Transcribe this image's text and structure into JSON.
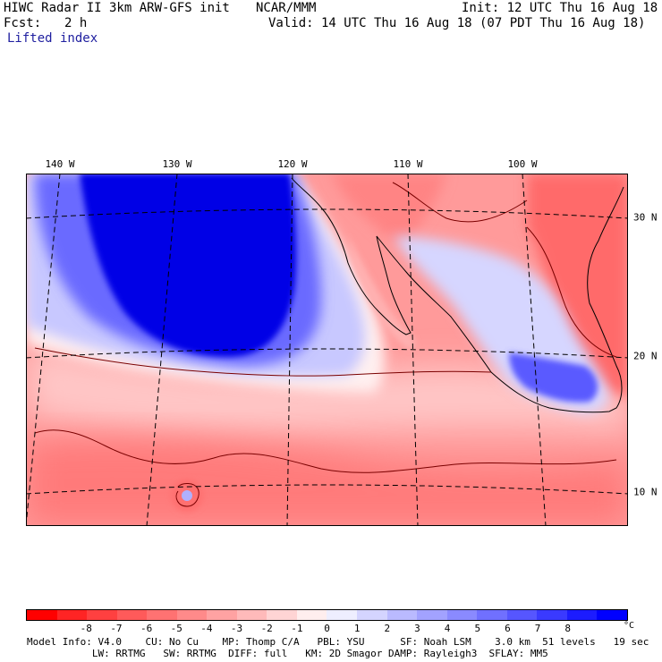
{
  "header": {
    "model": "HIWC Radar II 3km ARW-GFS init",
    "org": "NCAR/MMM",
    "init": "Init: 12 UTC Thu 16 Aug 18",
    "fcst_label": "Fcst:",
    "fcst_value": "2 h",
    "valid": "Valid: 14 UTC Thu 16 Aug 18 (07 PDT Thu 16 Aug 18)",
    "field": "Lifted index"
  },
  "map": {
    "longitude_labels": [
      "140 W",
      "130 W",
      "120 W",
      "110 W",
      "100 W"
    ],
    "latitude_labels": [
      "30 N",
      "20 N",
      "10 N"
    ]
  },
  "colorbar": {
    "unit": "°C",
    "ticks": [
      "-8",
      "-7",
      "-6",
      "-5",
      "-4",
      "-3",
      "-2",
      "-1",
      "0",
      "1",
      "2",
      "3",
      "4",
      "5",
      "6",
      "7",
      "8"
    ],
    "colors": [
      "#ff0000",
      "#ff2424",
      "#ff4040",
      "#ff5a5a",
      "#ff7272",
      "#ff8a8a",
      "#ffa2a2",
      "#ffbaba",
      "#ffd4d4",
      "#ffeeee",
      "#eeeeff",
      "#d4d4ff",
      "#babaff",
      "#a2a2ff",
      "#8a8aff",
      "#7070ff",
      "#5656ff",
      "#3a3aff",
      "#1c1cff",
      "#0000ff"
    ]
  },
  "colors": {
    "strong_stable": "#0000e6",
    "stable": "#6a6aff",
    "weak_stable": "#c8c8ff",
    "neutral": "#fff2f2",
    "weak_unstable": "#ffb4b4",
    "unstable": "#ff7676",
    "contour": "#7a0000"
  },
  "footer": {
    "line1": "Model Info: V4.0    CU: No Cu    MP: Thomp C/A   PBL: YSU      SF: Noah LSM    3.0 km  51 levels   19 sec",
    "line2": "           LW: RRTMG   SW: RRTMG  DIFF: full   KM: 2D Smagor DAMP: Rayleigh3  SFLAY: MM5"
  }
}
